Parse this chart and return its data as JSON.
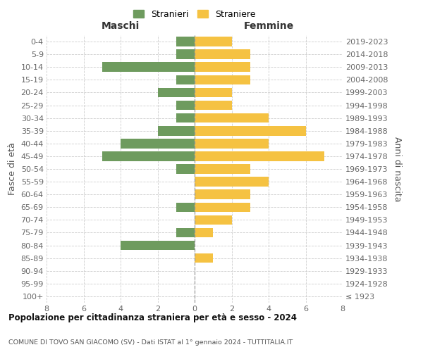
{
  "age_groups": [
    "100+",
    "95-99",
    "90-94",
    "85-89",
    "80-84",
    "75-79",
    "70-74",
    "65-69",
    "60-64",
    "55-59",
    "50-54",
    "45-49",
    "40-44",
    "35-39",
    "30-34",
    "25-29",
    "20-24",
    "15-19",
    "10-14",
    "5-9",
    "0-4"
  ],
  "birth_years": [
    "≤ 1923",
    "1924-1928",
    "1929-1933",
    "1934-1938",
    "1939-1943",
    "1944-1948",
    "1949-1953",
    "1954-1958",
    "1959-1963",
    "1964-1968",
    "1969-1973",
    "1974-1978",
    "1979-1983",
    "1984-1988",
    "1989-1993",
    "1994-1998",
    "1999-2003",
    "2004-2008",
    "2009-2013",
    "2014-2018",
    "2019-2023"
  ],
  "maschi": [
    0,
    0,
    0,
    0,
    4,
    1,
    0,
    1,
    0,
    0,
    1,
    5,
    4,
    2,
    1,
    1,
    2,
    1,
    5,
    1,
    1
  ],
  "femmine": [
    0,
    0,
    0,
    1,
    0,
    1,
    2,
    3,
    3,
    4,
    3,
    7,
    4,
    6,
    4,
    2,
    2,
    3,
    3,
    3,
    2
  ],
  "maschi_color": "#6e9b5e",
  "femmine_color": "#f5c242",
  "background_color": "#ffffff",
  "grid_color": "#cccccc",
  "title": "Popolazione per cittadinanza straniera per età e sesso - 2024",
  "subtitle": "COMUNE DI TOVO SAN GIACOMO (SV) - Dati ISTAT al 1° gennaio 2024 - TUTTITALIA.IT",
  "xlabel_left": "Maschi",
  "xlabel_right": "Femmine",
  "ylabel_left": "Fasce di età",
  "ylabel_right": "Anni di nascita",
  "legend_stranieri": "Stranieri",
  "legend_straniere": "Straniere",
  "xlim": 8,
  "bar_height": 0.75
}
